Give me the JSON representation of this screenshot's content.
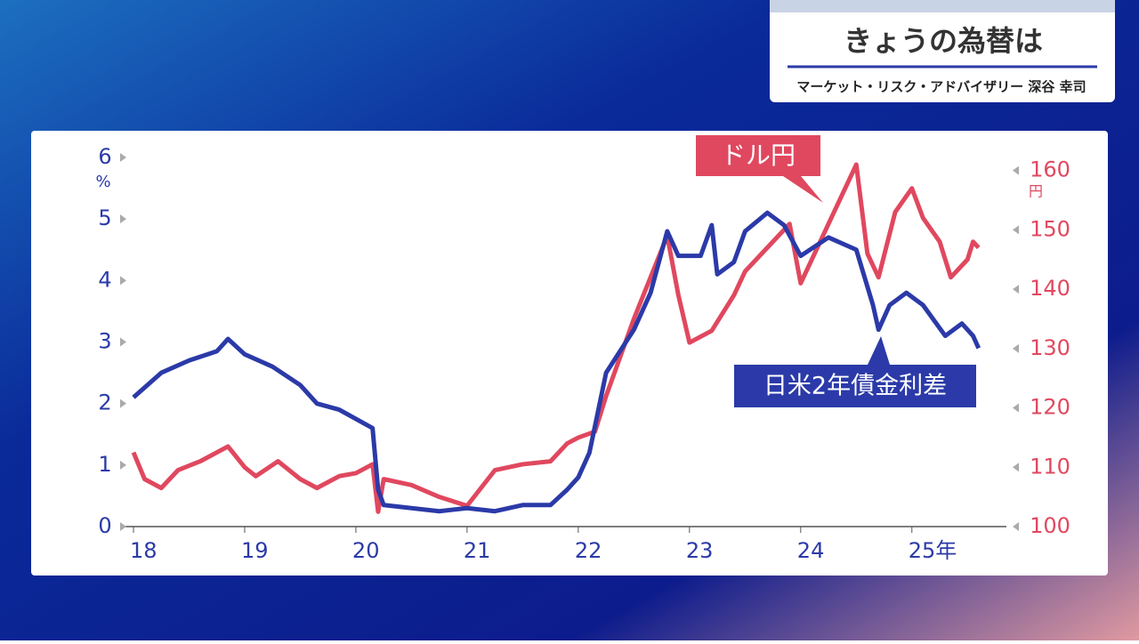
{
  "header": {
    "title": "きょうの為替は",
    "subtitle": "マーケット・リスク・アドバイザリー 深谷 幸司"
  },
  "chart_data": {
    "type": "line",
    "y_unit": "%",
    "y2_unit": "円",
    "xlim": [
      2018,
      2025.85
    ],
    "xticks": [
      {
        "value": 2018,
        "label": "18"
      },
      {
        "value": 2019,
        "label": "19"
      },
      {
        "value": 2020,
        "label": "20"
      },
      {
        "value": 2021,
        "label": "21"
      },
      {
        "value": 2022,
        "label": "22"
      },
      {
        "value": 2023,
        "label": "23"
      },
      {
        "value": 2024,
        "label": "24"
      },
      {
        "value": 2025,
        "label": "25年"
      }
    ],
    "ylim": [
      0,
      6
    ],
    "yticks": [
      0,
      1,
      2,
      3,
      4,
      5,
      6
    ],
    "y2lim": [
      100,
      162.2
    ],
    "y2ticks": [
      100,
      110,
      120,
      130,
      140,
      150,
      160
    ],
    "series": [
      {
        "name": "日米2年債金利差",
        "color": "#2b3aa8",
        "x": [
          2018.0,
          2018.25,
          2018.5,
          2018.75,
          2018.85,
          2019.0,
          2019.25,
          2019.5,
          2019.65,
          2019.85,
          2020.0,
          2020.15,
          2020.2,
          2020.25,
          2020.5,
          2020.75,
          2021.0,
          2021.25,
          2021.5,
          2021.75,
          2021.9,
          2022.0,
          2022.1,
          2022.25,
          2022.5,
          2022.65,
          2022.8,
          2022.9,
          2023.1,
          2023.2,
          2023.25,
          2023.4,
          2023.5,
          2023.7,
          2023.85,
          2024.0,
          2024.25,
          2024.5,
          2024.65,
          2024.7,
          2024.8,
          2024.95,
          2025.1,
          2025.3,
          2025.45,
          2025.55,
          2025.6
        ],
        "values": [
          2.1,
          2.5,
          2.7,
          2.85,
          3.05,
          2.8,
          2.6,
          2.3,
          2.0,
          1.9,
          1.75,
          1.6,
          0.6,
          0.35,
          0.3,
          0.25,
          0.3,
          0.25,
          0.35,
          0.35,
          0.6,
          0.8,
          1.2,
          2.5,
          3.2,
          3.8,
          4.8,
          4.4,
          4.4,
          4.9,
          4.1,
          4.3,
          4.8,
          5.1,
          4.9,
          4.4,
          4.7,
          4.5,
          3.6,
          3.2,
          3.6,
          3.8,
          3.6,
          3.1,
          3.3,
          3.1,
          2.9
        ]
      },
      {
        "name": "ドル円",
        "color": "#e0485f",
        "axis": "y2",
        "x": [
          2018.0,
          2018.1,
          2018.25,
          2018.4,
          2018.6,
          2018.85,
          2019.0,
          2019.1,
          2019.3,
          2019.5,
          2019.65,
          2019.85,
          2020.0,
          2020.15,
          2020.2,
          2020.25,
          2020.5,
          2020.75,
          2021.0,
          2021.25,
          2021.5,
          2021.75,
          2021.9,
          2022.0,
          2022.15,
          2022.25,
          2022.5,
          2022.8,
          2022.9,
          2023.0,
          2023.2,
          2023.4,
          2023.5,
          2023.75,
          2023.9,
          2024.0,
          2024.25,
          2024.35,
          2024.5,
          2024.6,
          2024.7,
          2024.85,
          2025.0,
          2025.1,
          2025.25,
          2025.35,
          2025.5,
          2025.55,
          2025.6
        ],
        "values": [
          112.5,
          108,
          106.5,
          109.5,
          111,
          113.5,
          110,
          108.5,
          111,
          108,
          106.5,
          108.5,
          109,
          110.5,
          102.5,
          108,
          107,
          105,
          103.5,
          109.5,
          110.5,
          111,
          114,
          115,
          116,
          122,
          135,
          149,
          139,
          131,
          133,
          139,
          143,
          148,
          151,
          141,
          151,
          155,
          161,
          146,
          142,
          153,
          157,
          152,
          148,
          142,
          145,
          148,
          147
        ]
      }
    ]
  }
}
